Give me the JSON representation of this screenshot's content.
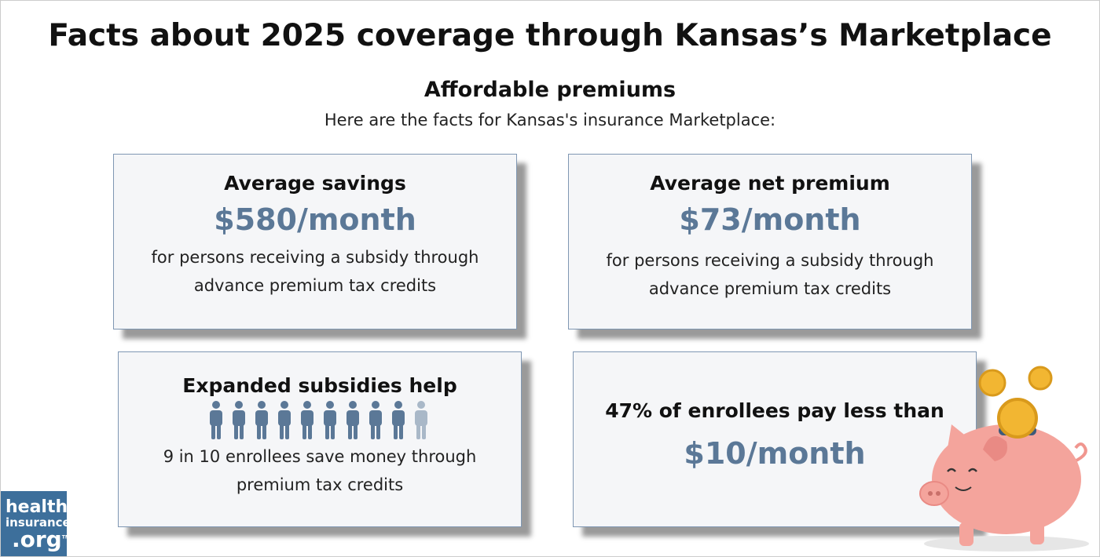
{
  "header": {
    "title": "Facts about 2025 coverage through Kansas’s Marketplace",
    "section": "Affordable premiums",
    "subtitle": "Here are the facts for Kansas's insurance Marketplace:"
  },
  "cards": [
    {
      "heading": "Average savings",
      "value": "$580/month",
      "description": [
        "for persons receiving a subsidy through",
        "advance premium tax credits"
      ]
    },
    {
      "heading": "Average net premium",
      "value": "$73/month",
      "description": [
        "for persons receiving a subsidy through",
        "advance premium tax credits"
      ]
    },
    {
      "heading": "Expanded subsidies help",
      "description": [
        "9 in 10 enrollees save money through",
        "premium tax credits"
      ]
    },
    {
      "heading": "47% of enrollees pay less than",
      "value": "$10/month"
    }
  ],
  "logo": {
    "lines": [
      "health",
      "insurance",
      ".org"
    ],
    "mark": "TM"
  }
}
